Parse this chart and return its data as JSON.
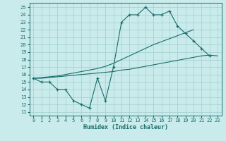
{
  "background_color": "#c9ebeb",
  "grid_color": "#a0cfcf",
  "line_color": "#1a6b6b",
  "xlabel": "Humidex (Indice chaleur)",
  "xlim": [
    -0.5,
    23.5
  ],
  "ylim": [
    10.5,
    25.6
  ],
  "yticks": [
    11,
    12,
    13,
    14,
    15,
    16,
    17,
    18,
    19,
    20,
    21,
    22,
    23,
    24,
    25
  ],
  "xticks": [
    0,
    1,
    2,
    3,
    4,
    5,
    6,
    7,
    8,
    9,
    10,
    11,
    12,
    13,
    14,
    15,
    16,
    17,
    18,
    19,
    20,
    21,
    22,
    23
  ],
  "curve_x": [
    0,
    1,
    2,
    3,
    4,
    5,
    6,
    7,
    8,
    9,
    10,
    11,
    12,
    13,
    14,
    15,
    16,
    17,
    18,
    19,
    20,
    21,
    22
  ],
  "curve_y": [
    15.5,
    15.0,
    15.0,
    14.0,
    14.0,
    12.5,
    12.0,
    11.5,
    15.5,
    12.5,
    17.0,
    23.0,
    24.0,
    24.0,
    25.0,
    24.0,
    24.0,
    24.5,
    22.5,
    21.5,
    20.5,
    19.5,
    18.5
  ],
  "line_upper_x": [
    0,
    1,
    2,
    3,
    4,
    5,
    6,
    7,
    8,
    9,
    10,
    11,
    12,
    13,
    14,
    15,
    16,
    17,
    18,
    19,
    20
  ],
  "line_upper_y": [
    15.5,
    15.6,
    15.7,
    15.8,
    16.0,
    16.2,
    16.4,
    16.6,
    16.8,
    17.1,
    17.5,
    18.0,
    18.5,
    19.0,
    19.5,
    20.0,
    20.4,
    20.8,
    21.2,
    21.6,
    22.0
  ],
  "line_lower_x": [
    0,
    1,
    2,
    3,
    4,
    5,
    6,
    7,
    8,
    9,
    10,
    11,
    12,
    13,
    14,
    15,
    16,
    17,
    18,
    19,
    20,
    21,
    22,
    23
  ],
  "line_lower_y": [
    15.5,
    15.5,
    15.6,
    15.7,
    15.8,
    15.9,
    16.0,
    16.1,
    16.2,
    16.3,
    16.4,
    16.6,
    16.7,
    16.9,
    17.1,
    17.3,
    17.5,
    17.7,
    17.9,
    18.1,
    18.3,
    18.5,
    18.6,
    18.5
  ]
}
